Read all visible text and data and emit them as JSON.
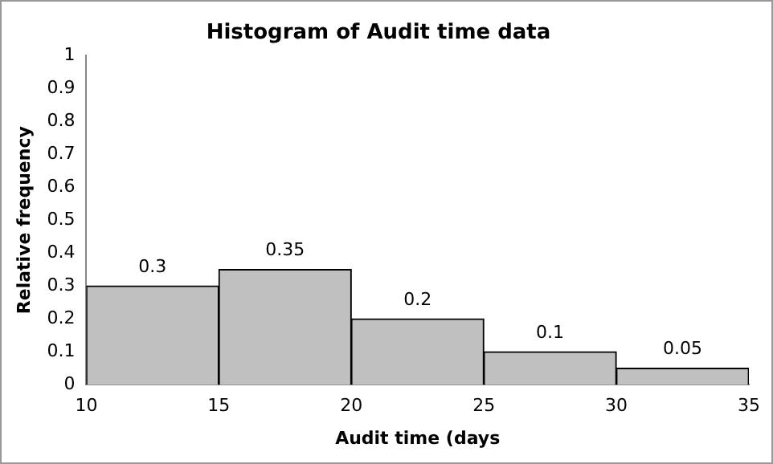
{
  "chart_data": {
    "type": "histogram",
    "title": "Histogram of Audit time data",
    "xlabel": "Audit time (days",
    "ylabel": "Relative frequency",
    "bins": [
      10,
      15,
      20,
      25,
      30,
      35
    ],
    "values": [
      0.3,
      0.35,
      0.2,
      0.1,
      0.05
    ],
    "color": "#c0c0c0",
    "data_labels": true,
    "grid": false,
    "legend": false,
    "xlim": [
      10,
      35
    ],
    "xticks": [
      10,
      15,
      20,
      25,
      30,
      35
    ],
    "ylim": [
      0,
      1
    ],
    "yticks": [
      0,
      0.1,
      0.2,
      0.3,
      0.4,
      0.5,
      0.6,
      0.7,
      0.8,
      0.9,
      1
    ]
  }
}
